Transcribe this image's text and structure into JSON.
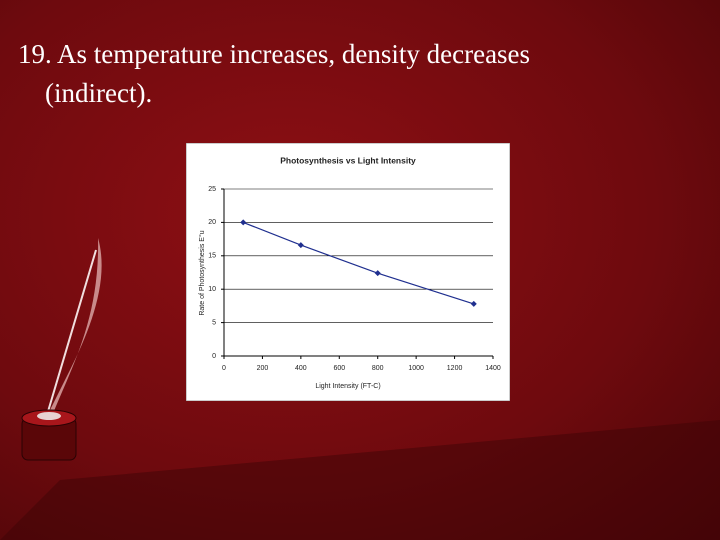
{
  "slide": {
    "lines": [
      "19. As temperature increases, density decreases",
      "(indirect)."
    ]
  },
  "chart_data": {
    "type": "line",
    "title": "Photosynthesis vs Light Intensity",
    "x_label": "Light Intensity (FT-C)",
    "y_label": "Rate of Photosynthesis E°u",
    "series": [
      {
        "name": "Rate",
        "color": "#1f2f8f",
        "x": [
          100,
          400,
          800,
          1300
        ],
        "values": [
          20,
          16.6,
          12.4,
          7.8
        ]
      }
    ],
    "xlim": [
      0,
      1400
    ],
    "xticks": [
      0,
      200,
      400,
      600,
      800,
      1000,
      1200,
      1400
    ],
    "ylim": [
      0,
      25
    ],
    "yticks": [
      0,
      5,
      10,
      15,
      20,
      25
    ],
    "grid": true
  }
}
